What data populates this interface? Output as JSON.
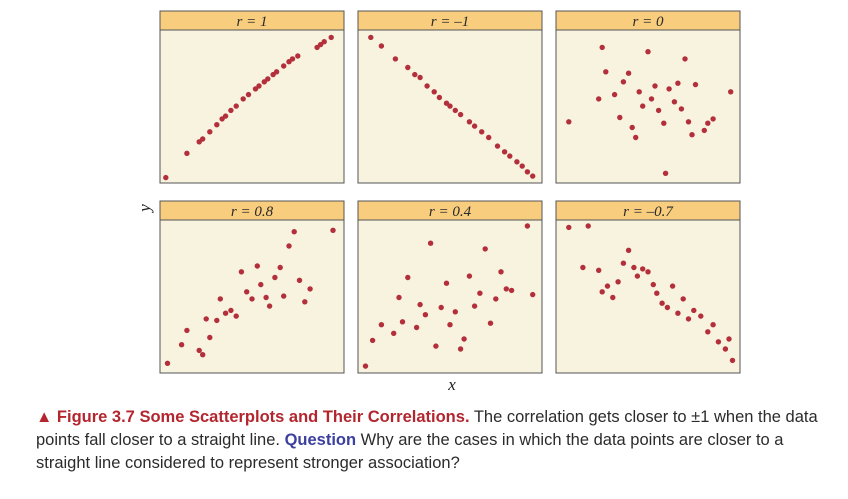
{
  "figure": {
    "y_label": "y",
    "x_label": "x"
  },
  "colors": {
    "point": "#b32f3c",
    "header_fill": "#f8cd7e",
    "panel_fill": "#f8f3de",
    "border": "#555555",
    "caption_accent": "#b3262e",
    "question_accent": "#3b3f9e"
  },
  "chart_data": [
    {
      "type": "scatter",
      "title": "r = 1",
      "xlim": [
        0,
        10
      ],
      "ylim": [
        0,
        10
      ],
      "grid": false,
      "points": [
        [
          0.1,
          0.1
        ],
        [
          1.3,
          1.8
        ],
        [
          2.0,
          2.6
        ],
        [
          2.2,
          2.8
        ],
        [
          2.6,
          3.3
        ],
        [
          3.0,
          3.8
        ],
        [
          3.3,
          4.2
        ],
        [
          3.5,
          4.4
        ],
        [
          3.8,
          4.8
        ],
        [
          4.1,
          5.1
        ],
        [
          4.5,
          5.6
        ],
        [
          4.8,
          5.9
        ],
        [
          5.2,
          6.3
        ],
        [
          5.4,
          6.5
        ],
        [
          5.7,
          6.8
        ],
        [
          5.9,
          7.0
        ],
        [
          6.2,
          7.3
        ],
        [
          6.4,
          7.5
        ],
        [
          6.8,
          7.9
        ],
        [
          7.1,
          8.2
        ],
        [
          7.3,
          8.4
        ],
        [
          7.6,
          8.6
        ],
        [
          8.7,
          9.2
        ],
        [
          8.9,
          9.4
        ],
        [
          9.1,
          9.6
        ],
        [
          9.5,
          9.9
        ]
      ]
    },
    {
      "type": "scatter",
      "title": "r = –1",
      "xlim": [
        0,
        10
      ],
      "ylim": [
        0,
        10
      ],
      "grid": false,
      "points": [
        [
          0.5,
          9.9
        ],
        [
          1.1,
          9.3
        ],
        [
          1.9,
          8.4
        ],
        [
          2.6,
          7.8
        ],
        [
          3.0,
          7.3
        ],
        [
          3.3,
          7.1
        ],
        [
          3.7,
          6.5
        ],
        [
          4.1,
          6.1
        ],
        [
          4.4,
          5.7
        ],
        [
          4.8,
          5.3
        ],
        [
          5.0,
          5.1
        ],
        [
          5.3,
          4.8
        ],
        [
          5.6,
          4.5
        ],
        [
          6.1,
          4.0
        ],
        [
          6.4,
          3.7
        ],
        [
          6.8,
          3.3
        ],
        [
          7.2,
          2.9
        ],
        [
          7.7,
          2.3
        ],
        [
          8.1,
          1.9
        ],
        [
          8.4,
          1.6
        ],
        [
          8.8,
          1.2
        ],
        [
          9.1,
          0.9
        ],
        [
          9.4,
          0.5
        ],
        [
          9.7,
          0.2
        ]
      ]
    },
    {
      "type": "scatter",
      "title": "r = 0",
      "xlim": [
        0,
        10
      ],
      "ylim": [
        0,
        10
      ],
      "grid": false,
      "points": [
        [
          0.5,
          4.0
        ],
        [
          2.2,
          5.6
        ],
        [
          2.4,
          9.2
        ],
        [
          2.6,
          7.5
        ],
        [
          3.1,
          5.9
        ],
        [
          3.4,
          4.3
        ],
        [
          3.6,
          6.8
        ],
        [
          3.9,
          7.4
        ],
        [
          4.1,
          3.6
        ],
        [
          4.3,
          2.9
        ],
        [
          4.5,
          6.1
        ],
        [
          4.7,
          5.1
        ],
        [
          5.0,
          8.9
        ],
        [
          5.2,
          5.6
        ],
        [
          5.4,
          6.5
        ],
        [
          5.6,
          4.8
        ],
        [
          5.9,
          3.9
        ],
        [
          6.0,
          0.4
        ],
        [
          6.2,
          6.3
        ],
        [
          6.5,
          5.4
        ],
        [
          6.7,
          6.7
        ],
        [
          6.9,
          4.9
        ],
        [
          7.1,
          8.4
        ],
        [
          7.3,
          4.0
        ],
        [
          7.5,
          3.1
        ],
        [
          7.7,
          6.6
        ],
        [
          8.2,
          3.4
        ],
        [
          8.4,
          3.9
        ],
        [
          8.7,
          4.2
        ],
        [
          9.7,
          6.1
        ]
      ]
    },
    {
      "type": "scatter",
      "title": "r = 0.8",
      "xlim": [
        0,
        10
      ],
      "ylim": [
        0,
        10
      ],
      "grid": false,
      "points": [
        [
          0.2,
          0.4
        ],
        [
          1.0,
          1.7
        ],
        [
          1.3,
          2.7
        ],
        [
          2.0,
          1.3
        ],
        [
          2.2,
          1.0
        ],
        [
          2.4,
          3.5
        ],
        [
          2.6,
          2.2
        ],
        [
          3.0,
          3.4
        ],
        [
          3.2,
          4.9
        ],
        [
          3.5,
          3.9
        ],
        [
          3.8,
          4.1
        ],
        [
          4.1,
          3.7
        ],
        [
          4.4,
          6.8
        ],
        [
          4.7,
          5.4
        ],
        [
          5.0,
          4.9
        ],
        [
          5.3,
          7.2
        ],
        [
          5.5,
          5.9
        ],
        [
          5.8,
          5.0
        ],
        [
          6.0,
          4.4
        ],
        [
          6.3,
          6.4
        ],
        [
          6.6,
          7.1
        ],
        [
          6.8,
          5.1
        ],
        [
          7.1,
          8.6
        ],
        [
          7.4,
          9.6
        ],
        [
          7.7,
          6.2
        ],
        [
          8.0,
          4.7
        ],
        [
          8.3,
          5.6
        ],
        [
          9.6,
          9.7
        ]
      ]
    },
    {
      "type": "scatter",
      "title": "r = 0.4",
      "xlim": [
        0,
        10
      ],
      "ylim": [
        0,
        10
      ],
      "grid": false,
      "points": [
        [
          0.2,
          0.2
        ],
        [
          0.6,
          2.0
        ],
        [
          1.1,
          3.1
        ],
        [
          1.8,
          2.5
        ],
        [
          2.1,
          5.0
        ],
        [
          2.3,
          3.3
        ],
        [
          2.6,
          6.4
        ],
        [
          3.1,
          2.9
        ],
        [
          3.3,
          4.5
        ],
        [
          3.6,
          3.8
        ],
        [
          3.9,
          8.8
        ],
        [
          4.2,
          1.6
        ],
        [
          4.5,
          4.3
        ],
        [
          4.8,
          6.0
        ],
        [
          5.0,
          3.1
        ],
        [
          5.3,
          4.0
        ],
        [
          5.6,
          1.4
        ],
        [
          5.8,
          2.1
        ],
        [
          6.1,
          6.5
        ],
        [
          6.4,
          4.4
        ],
        [
          6.7,
          5.3
        ],
        [
          7.0,
          8.4
        ],
        [
          7.3,
          3.2
        ],
        [
          7.6,
          4.9
        ],
        [
          7.9,
          6.8
        ],
        [
          8.2,
          5.6
        ],
        [
          8.5,
          5.5
        ],
        [
          9.4,
          10.0
        ],
        [
          9.7,
          5.2
        ]
      ]
    },
    {
      "type": "scatter",
      "title": "r = –0.7",
      "xlim": [
        0,
        10
      ],
      "ylim": [
        0,
        10
      ],
      "grid": false,
      "points": [
        [
          0.5,
          9.9
        ],
        [
          1.3,
          7.1
        ],
        [
          1.6,
          10.0
        ],
        [
          2.2,
          6.9
        ],
        [
          2.4,
          5.4
        ],
        [
          2.7,
          5.8
        ],
        [
          3.0,
          5.0
        ],
        [
          3.3,
          6.1
        ],
        [
          3.6,
          7.4
        ],
        [
          3.9,
          8.3
        ],
        [
          4.2,
          7.1
        ],
        [
          4.4,
          6.5
        ],
        [
          4.7,
          7.0
        ],
        [
          5.0,
          6.8
        ],
        [
          5.3,
          5.9
        ],
        [
          5.5,
          5.3
        ],
        [
          5.8,
          4.6
        ],
        [
          6.1,
          4.3
        ],
        [
          6.4,
          5.8
        ],
        [
          6.7,
          3.9
        ],
        [
          7.0,
          4.9
        ],
        [
          7.3,
          3.5
        ],
        [
          7.6,
          4.1
        ],
        [
          8.0,
          3.7
        ],
        [
          8.4,
          2.6
        ],
        [
          8.7,
          3.1
        ],
        [
          9.0,
          1.9
        ],
        [
          9.4,
          1.4
        ],
        [
          9.6,
          2.1
        ],
        [
          9.8,
          0.6
        ]
      ]
    }
  ],
  "caption": {
    "figure_label": "▲ Figure 3.7",
    "figure_title": "Some Scatterplots and Their Correlations.",
    "body": "The correlation gets closer to ±1 when the data points fall closer to a straight line.",
    "question_label": "Question",
    "question_text": "Why are the cases in which the data points are closer to a straight line considered to represent stronger association?"
  }
}
